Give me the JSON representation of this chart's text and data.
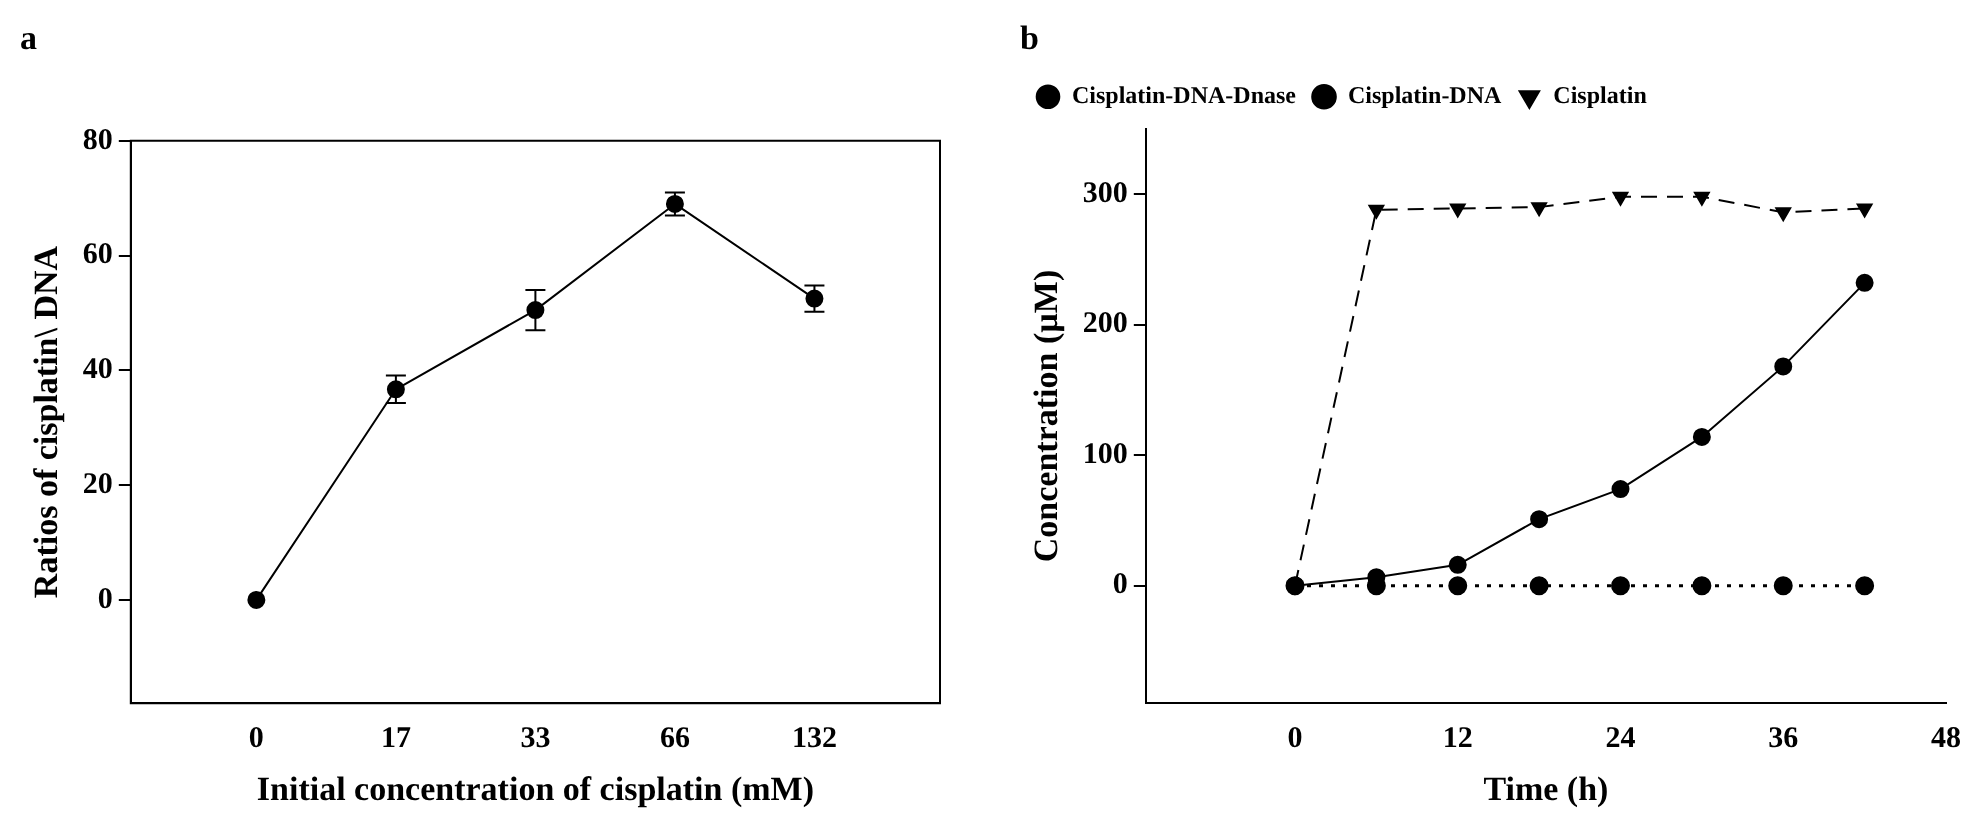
{
  "chart_data": [
    {
      "type": "line",
      "title": "a",
      "xlabel": "Initial concentration of cisplatin (mM)",
      "ylabel": "Ratios of cisplatin\\ DNA",
      "categories": [
        "0",
        "17",
        "33",
        "66",
        "132"
      ],
      "series": [
        {
          "color": "#000000",
          "values": [
            0,
            36.7,
            50.5,
            69,
            52.5
          ],
          "errors": [
            null,
            2.4,
            3.5,
            2,
            2.3
          ]
        }
      ],
      "ylim": [
        -18,
        80
      ],
      "yticks": [
        0,
        20,
        40,
        60,
        80
      ],
      "marker": "circle",
      "line_style": "solid",
      "grid": false,
      "legend": false
    },
    {
      "type": "line",
      "title": "b",
      "xlabel": "Time (h)",
      "ylabel": "Concentration (µM)",
      "series": [
        {
          "name": "Cisplatin-DNA-Dnase",
          "color": "#000000",
          "marker": "circle",
          "line_style": "solid",
          "x": [
            0,
            6,
            12,
            18,
            24,
            30,
            36,
            42
          ],
          "values": [
            0,
            6.5,
            16,
            51,
            74,
            114,
            168,
            232
          ]
        },
        {
          "name": "Cisplatin-DNA",
          "color": "#000000",
          "marker": "circle",
          "line_style": "dotted",
          "x": [
            0,
            6,
            12,
            18,
            24,
            30,
            36,
            42
          ],
          "values": [
            0,
            0,
            0,
            0,
            0,
            0,
            0,
            0
          ]
        },
        {
          "name": "Cisplatin",
          "color": "#000000",
          "marker": "triangle",
          "line_style": "dashed",
          "x": [
            0,
            6,
            12,
            18,
            24,
            30,
            36,
            42
          ],
          "values": [
            0,
            288,
            289,
            290,
            298,
            298,
            286,
            289
          ]
        }
      ],
      "xlim": [
        -11,
        48
      ],
      "xticks": [
        0,
        12,
        24,
        36,
        48
      ],
      "ylim": [
        -90,
        350
      ],
      "yticks": [
        0,
        100,
        200,
        300
      ],
      "grid": false,
      "legend": "top left"
    }
  ]
}
